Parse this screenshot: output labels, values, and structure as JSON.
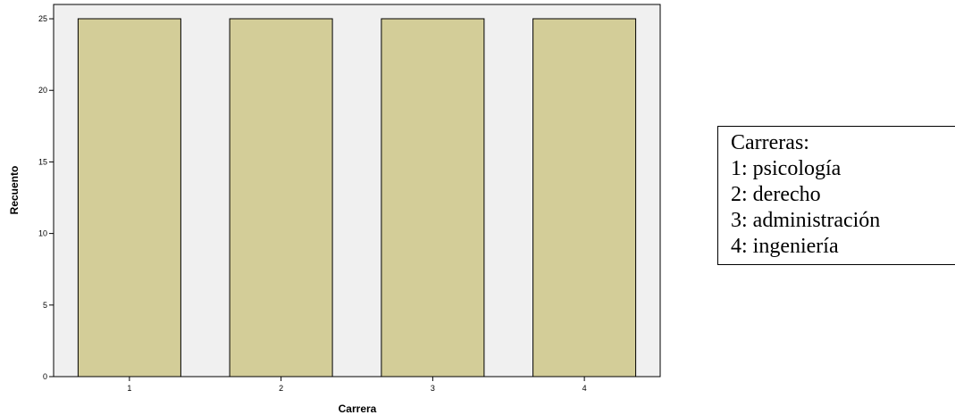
{
  "chart_data": {
    "type": "bar",
    "categories": [
      "1",
      "2",
      "3",
      "4"
    ],
    "values": [
      25,
      25,
      25,
      25
    ],
    "xlabel": "Carrera",
    "ylabel": "Recuento",
    "ylim": [
      0,
      26
    ],
    "yticks": [
      "0",
      "5",
      "10",
      "15",
      "20",
      "25"
    ],
    "grid": false,
    "bar_color": "#d3cd98",
    "plot_background": "#f0f0f0"
  },
  "legend": {
    "title": "Carreras:",
    "items": [
      "1: psicología",
      "2: derecho",
      "3: administración",
      "4: ingeniería"
    ]
  }
}
